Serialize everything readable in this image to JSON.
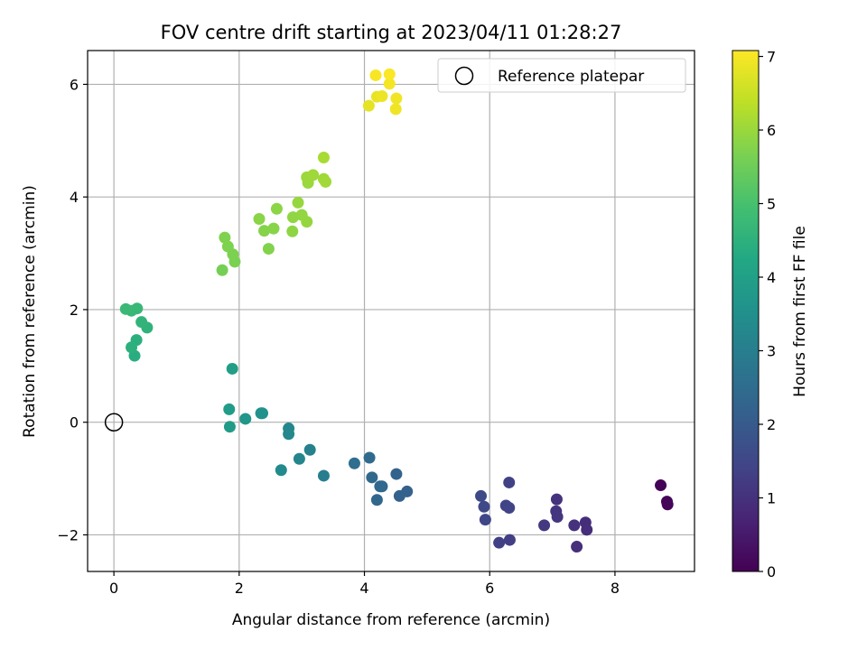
{
  "chart_data": {
    "type": "scatter",
    "title": "FOV centre drift starting at 2023/04/11 01:28:27",
    "xlabel": "Angular distance from reference (arcmin)",
    "ylabel": "Rotation from reference (arcmin)",
    "xlim": [
      -0.42,
      9.27
    ],
    "ylim": [
      -2.65,
      6.6
    ],
    "xticks": [
      0,
      2,
      4,
      6,
      8
    ],
    "yticks": [
      -2,
      0,
      2,
      4,
      6
    ],
    "xtick_labels": [
      "0",
      "2",
      "4",
      "6",
      "8"
    ],
    "ytick_labels": [
      "−2",
      "0",
      "2",
      "4",
      "6"
    ],
    "grid": true,
    "legend": {
      "position": "top-right",
      "entries": [
        {
          "label": "Reference platepar",
          "marker": "open-circle"
        }
      ]
    },
    "reference": {
      "x": 0,
      "y": 0,
      "label": "Reference platepar"
    },
    "colorbar": {
      "label": "Hours from first FF file",
      "colormap": "viridis",
      "range": [
        0,
        7.08
      ],
      "ticks": [
        0,
        1,
        2,
        3,
        4,
        5,
        6,
        7
      ],
      "tick_labels": [
        "0",
        "1",
        "2",
        "3",
        "4",
        "5",
        "6",
        "7"
      ]
    },
    "points": [
      {
        "x": 8.73,
        "y": -1.12,
        "hours": 0.05
      },
      {
        "x": 8.83,
        "y": -1.41,
        "hours": 0.08
      },
      {
        "x": 8.84,
        "y": -1.46,
        "hours": 0.1
      },
      {
        "x": 7.53,
        "y": -1.78,
        "hours": 0.9
      },
      {
        "x": 7.55,
        "y": -1.91,
        "hours": 0.92
      },
      {
        "x": 7.39,
        "y": -2.21,
        "hours": 0.95
      },
      {
        "x": 7.35,
        "y": -1.83,
        "hours": 1.0
      },
      {
        "x": 7.07,
        "y": -1.37,
        "hours": 1.03
      },
      {
        "x": 7.06,
        "y": -1.58,
        "hours": 1.06
      },
      {
        "x": 7.08,
        "y": -1.68,
        "hours": 1.1
      },
      {
        "x": 6.87,
        "y": -1.83,
        "hours": 1.15
      },
      {
        "x": 6.32,
        "y": -2.09,
        "hours": 1.3
      },
      {
        "x": 6.15,
        "y": -2.14,
        "hours": 1.33
      },
      {
        "x": 6.31,
        "y": -1.07,
        "hours": 1.38
      },
      {
        "x": 6.26,
        "y": -1.48,
        "hours": 1.4
      },
      {
        "x": 6.31,
        "y": -1.52,
        "hours": 1.42
      },
      {
        "x": 5.93,
        "y": -1.73,
        "hours": 1.5
      },
      {
        "x": 5.91,
        "y": -1.5,
        "hours": 1.55
      },
      {
        "x": 5.86,
        "y": -1.31,
        "hours": 1.58
      },
      {
        "x": 4.56,
        "y": -1.31,
        "hours": 2.2
      },
      {
        "x": 4.68,
        "y": -1.23,
        "hours": 2.22
      },
      {
        "x": 4.51,
        "y": -0.92,
        "hours": 2.25
      },
      {
        "x": 4.28,
        "y": -1.14,
        "hours": 2.3
      },
      {
        "x": 4.2,
        "y": -1.38,
        "hours": 2.35
      },
      {
        "x": 4.25,
        "y": -1.14,
        "hours": 2.37
      },
      {
        "x": 4.12,
        "y": -0.98,
        "hours": 2.4
      },
      {
        "x": 4.08,
        "y": -0.63,
        "hours": 2.45
      },
      {
        "x": 3.84,
        "y": -0.73,
        "hours": 2.55
      },
      {
        "x": 3.35,
        "y": -0.95,
        "hours": 3.0
      },
      {
        "x": 3.13,
        "y": -0.49,
        "hours": 3.1
      },
      {
        "x": 2.96,
        "y": -0.65,
        "hours": 3.2
      },
      {
        "x": 2.79,
        "y": -0.11,
        "hours": 3.25
      },
      {
        "x": 2.79,
        "y": -0.21,
        "hours": 3.28
      },
      {
        "x": 2.67,
        "y": -0.85,
        "hours": 3.35
      },
      {
        "x": 2.35,
        "y": 0.16,
        "hours": 3.55
      },
      {
        "x": 2.37,
        "y": 0.16,
        "hours": 3.57
      },
      {
        "x": 2.1,
        "y": 0.06,
        "hours": 3.7
      },
      {
        "x": 1.85,
        "y": -0.08,
        "hours": 3.85
      },
      {
        "x": 1.84,
        "y": 0.23,
        "hours": 3.88
      },
      {
        "x": 1.89,
        "y": 0.95,
        "hours": 3.95
      },
      {
        "x": 0.33,
        "y": 1.18,
        "hours": 4.4
      },
      {
        "x": 0.36,
        "y": 1.46,
        "hours": 4.45
      },
      {
        "x": 0.28,
        "y": 1.33,
        "hours": 4.48
      },
      {
        "x": 0.53,
        "y": 1.68,
        "hours": 4.55
      },
      {
        "x": 0.44,
        "y": 1.78,
        "hours": 4.6
      },
      {
        "x": 0.37,
        "y": 2.02,
        "hours": 4.7
      },
      {
        "x": 0.28,
        "y": 1.98,
        "hours": 4.72
      },
      {
        "x": 0.19,
        "y": 2.01,
        "hours": 4.75
      },
      {
        "x": 1.73,
        "y": 2.7,
        "hours": 5.6
      },
      {
        "x": 1.93,
        "y": 2.85,
        "hours": 5.65
      },
      {
        "x": 1.9,
        "y": 2.98,
        "hours": 5.68
      },
      {
        "x": 1.82,
        "y": 3.12,
        "hours": 5.7
      },
      {
        "x": 1.77,
        "y": 3.28,
        "hours": 5.72
      },
      {
        "x": 2.47,
        "y": 3.08,
        "hours": 5.75
      },
      {
        "x": 2.4,
        "y": 3.4,
        "hours": 5.78
      },
      {
        "x": 2.55,
        "y": 3.44,
        "hours": 5.8
      },
      {
        "x": 2.32,
        "y": 3.61,
        "hours": 5.83
      },
      {
        "x": 2.6,
        "y": 3.79,
        "hours": 5.85
      },
      {
        "x": 2.85,
        "y": 3.39,
        "hours": 5.88
      },
      {
        "x": 2.86,
        "y": 3.64,
        "hours": 5.9
      },
      {
        "x": 3.0,
        "y": 3.68,
        "hours": 5.92
      },
      {
        "x": 3.08,
        "y": 3.56,
        "hours": 5.94
      },
      {
        "x": 2.94,
        "y": 3.9,
        "hours": 5.96
      },
      {
        "x": 3.1,
        "y": 4.25,
        "hours": 6.0
      },
      {
        "x": 3.08,
        "y": 4.35,
        "hours": 6.02
      },
      {
        "x": 3.18,
        "y": 4.39,
        "hours": 6.04
      },
      {
        "x": 3.35,
        "y": 4.32,
        "hours": 6.06
      },
      {
        "x": 3.38,
        "y": 4.27,
        "hours": 6.08
      },
      {
        "x": 3.35,
        "y": 4.7,
        "hours": 6.15
      },
      {
        "x": 4.07,
        "y": 5.62,
        "hours": 6.8
      },
      {
        "x": 4.2,
        "y": 5.78,
        "hours": 6.85
      },
      {
        "x": 4.28,
        "y": 5.79,
        "hours": 6.88
      },
      {
        "x": 4.5,
        "y": 5.56,
        "hours": 6.92
      },
      {
        "x": 4.51,
        "y": 5.75,
        "hours": 6.94
      },
      {
        "x": 4.4,
        "y": 6.01,
        "hours": 6.98
      },
      {
        "x": 4.18,
        "y": 6.16,
        "hours": 7.02
      },
      {
        "x": 4.4,
        "y": 6.18,
        "hours": 7.05
      }
    ]
  }
}
